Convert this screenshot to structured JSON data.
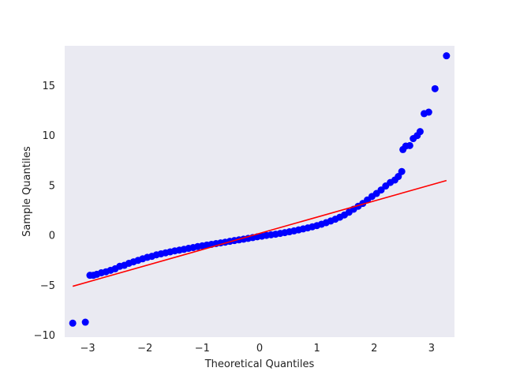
{
  "chart_data": {
    "type": "scatter",
    "title": "",
    "xlabel": "Theoretical Quantiles",
    "ylabel": "Sample Quantiles",
    "xlim": [
      -3.4,
      3.4
    ],
    "ylim": [
      -10.2,
      19.0
    ],
    "x_ticks": [
      -3,
      -2,
      -1,
      0,
      1,
      2,
      3
    ],
    "x_tick_labels": [
      "−3",
      "−2",
      "−1",
      "0",
      "1",
      "2",
      "3"
    ],
    "y_ticks": [
      -10,
      -5,
      0,
      5,
      10,
      15
    ],
    "y_tick_labels": [
      "−10",
      "−5",
      "0",
      "5",
      "10",
      "15"
    ],
    "grid": false,
    "background_color": "#eaeaf2",
    "points_color": "#0000ff",
    "line_color": "#ff0000",
    "series": [
      {
        "kind": "points",
        "points": [
          [
            -3.26,
            -8.8
          ],
          [
            -3.04,
            -8.7
          ],
          [
            -2.96,
            -4.0
          ],
          [
            -2.9,
            -4.0
          ],
          [
            -2.84,
            -3.9
          ],
          [
            -2.76,
            -3.75
          ],
          [
            -2.68,
            -3.65
          ],
          [
            -2.6,
            -3.5
          ],
          [
            -2.52,
            -3.35
          ],
          [
            -2.44,
            -3.1
          ],
          [
            -2.36,
            -3.0
          ],
          [
            -2.28,
            -2.8
          ],
          [
            -2.2,
            -2.65
          ],
          [
            -2.12,
            -2.5
          ],
          [
            -2.04,
            -2.35
          ],
          [
            -1.96,
            -2.2
          ],
          [
            -1.88,
            -2.1
          ],
          [
            -1.8,
            -1.95
          ],
          [
            -1.72,
            -1.85
          ],
          [
            -1.64,
            -1.75
          ],
          [
            -1.56,
            -1.65
          ],
          [
            -1.48,
            -1.55
          ],
          [
            -1.4,
            -1.48
          ],
          [
            -1.32,
            -1.4
          ],
          [
            -1.24,
            -1.3
          ],
          [
            -1.16,
            -1.22
          ],
          [
            -1.08,
            -1.12
          ],
          [
            -1.0,
            -1.05
          ],
          [
            -0.92,
            -0.97
          ],
          [
            -0.84,
            -0.9
          ],
          [
            -0.76,
            -0.82
          ],
          [
            -0.68,
            -0.75
          ],
          [
            -0.6,
            -0.68
          ],
          [
            -0.52,
            -0.6
          ],
          [
            -0.44,
            -0.52
          ],
          [
            -0.36,
            -0.45
          ],
          [
            -0.28,
            -0.38
          ],
          [
            -0.2,
            -0.3
          ],
          [
            -0.12,
            -0.22
          ],
          [
            -0.04,
            -0.14
          ],
          [
            0.04,
            -0.08
          ],
          [
            0.12,
            0.0
          ],
          [
            0.2,
            0.06
          ],
          [
            0.28,
            0.12
          ],
          [
            0.36,
            0.2
          ],
          [
            0.44,
            0.28
          ],
          [
            0.52,
            0.36
          ],
          [
            0.6,
            0.45
          ],
          [
            0.68,
            0.55
          ],
          [
            0.76,
            0.65
          ],
          [
            0.84,
            0.75
          ],
          [
            0.92,
            0.86
          ],
          [
            1.0,
            0.98
          ],
          [
            1.08,
            1.12
          ],
          [
            1.16,
            1.27
          ],
          [
            1.24,
            1.44
          ],
          [
            1.32,
            1.62
          ],
          [
            1.4,
            1.82
          ],
          [
            1.48,
            2.05
          ],
          [
            1.56,
            2.32
          ],
          [
            1.64,
            2.62
          ],
          [
            1.72,
            2.92
          ],
          [
            1.8,
            3.2
          ],
          [
            1.88,
            3.55
          ],
          [
            1.96,
            3.9
          ],
          [
            2.04,
            4.2
          ],
          [
            2.12,
            4.55
          ],
          [
            2.2,
            4.95
          ],
          [
            2.28,
            5.3
          ],
          [
            2.36,
            5.55
          ],
          [
            2.42,
            5.9
          ],
          [
            2.48,
            6.4
          ],
          [
            2.5,
            8.6
          ],
          [
            2.55,
            8.95
          ],
          [
            2.62,
            9.0
          ],
          [
            2.68,
            9.7
          ],
          [
            2.75,
            10.0
          ],
          [
            2.8,
            10.4
          ],
          [
            2.87,
            12.2
          ],
          [
            2.95,
            12.35
          ],
          [
            3.06,
            14.7
          ],
          [
            3.26,
            18.0
          ]
        ]
      },
      {
        "kind": "reference-line",
        "points": [
          [
            -3.26,
            -5.1
          ],
          [
            3.26,
            5.5
          ]
        ]
      }
    ]
  }
}
